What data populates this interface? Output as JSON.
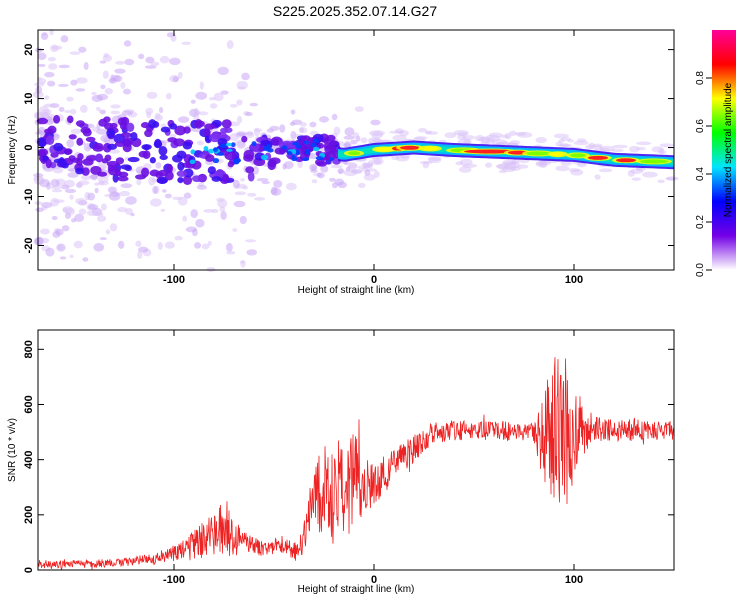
{
  "title": "S225.2025.352.07.14.G27",
  "chart_data": [
    {
      "type": "heatmap",
      "xlabel": "Height of straight line (km)",
      "ylabel": "Frequency (Hz)",
      "xlim": [
        -168,
        150
      ],
      "ylim": [
        -25,
        24
      ],
      "xticks": [
        "-100",
        "0",
        "100"
      ],
      "yticks": [
        "-20",
        "-10",
        "0",
        "10",
        "20"
      ],
      "ridge": {
        "x": [
          -168,
          -100,
          -60,
          -30,
          -15,
          0,
          20,
          40,
          70,
          100,
          120,
          150
        ],
        "y": [
          0.5,
          -1,
          -1,
          -0.5,
          -1.5,
          -0.5,
          0,
          -0.5,
          -1,
          -1.5,
          -2.5,
          -3
        ]
      },
      "colorbar": {
        "label": "Normalized spectral amplitude",
        "ticks": [
          "0.0",
          "0.2",
          "0.4",
          "0.6",
          "0.8"
        ],
        "range": [
          0,
          1
        ],
        "colors": [
          "#ffffff",
          "#7300e6",
          "#0000ff",
          "#00e5ff",
          "#00ff00",
          "#ffff00",
          "#ff0000",
          "#ff0099"
        ]
      }
    },
    {
      "type": "line",
      "xlabel": "Height of straight line (km)",
      "ylabel": "SNR (10 * v/v)",
      "xlim": [
        -168,
        150
      ],
      "ylim": [
        0,
        870
      ],
      "xticks": [
        "-100",
        "0",
        "100"
      ],
      "yticks": [
        "0",
        "200",
        "400",
        "600",
        "800"
      ],
      "series": [
        {
          "name": "SNR",
          "color": "#ee2222",
          "envelope": {
            "x": [
              -168,
              -130,
              -110,
              -95,
              -85,
              -80,
              -75,
              -70,
              -65,
              -55,
              -45,
              -38,
              -30,
              -25,
              -15,
              -10,
              -5,
              0,
              10,
              20,
              30,
              50,
              80,
              85,
              90,
              95,
              100,
              105,
              110,
              130,
              150
            ],
            "mean": [
              20,
              25,
              40,
              70,
              110,
              130,
              150,
              120,
              100,
              80,
              90,
              60,
              250,
              280,
              290,
              330,
              310,
              310,
              380,
              440,
              500,
              510,
              500,
              490,
              490,
              500,
              500,
              520,
              510,
              510,
              505
            ],
            "amp": [
              15,
              15,
              20,
              40,
              70,
              80,
              100,
              70,
              40,
              30,
              30,
              35,
              120,
              200,
              180,
              180,
              100,
              80,
              60,
              50,
              40,
              35,
              35,
              180,
              320,
              300,
              180,
              100,
              45,
              40,
              35
            ]
          }
        }
      ]
    }
  ]
}
